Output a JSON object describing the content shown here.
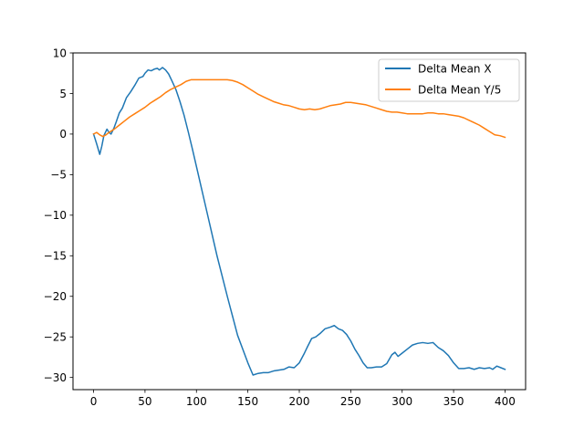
{
  "chart_data": {
    "type": "line",
    "title": "",
    "xlabel": "",
    "ylabel": "",
    "xlim": [
      -20,
      420
    ],
    "ylim": [
      -31.5,
      10
    ],
    "xticks": [
      0,
      50,
      100,
      150,
      200,
      250,
      300,
      350,
      400
    ],
    "yticks": [
      10,
      5,
      0,
      -5,
      -10,
      -15,
      -20,
      -25,
      -30
    ],
    "xtick_labels": [
      "0",
      "50",
      "100",
      "150",
      "200",
      "250",
      "300",
      "350",
      "400"
    ],
    "ytick_labels": [
      "10",
      "5",
      "0",
      "−5",
      "−10",
      "−15",
      "−20",
      "−25",
      "−30"
    ],
    "grid": false,
    "legend_position": "top-right",
    "series": [
      {
        "name": "Delta Mean X",
        "color": "#1f77b4",
        "points": [
          [
            0,
            0
          ],
          [
            3,
            -1.2
          ],
          [
            6,
            -2.5
          ],
          [
            8,
            -1.5
          ],
          [
            10,
            -0.2
          ],
          [
            13,
            0.6
          ],
          [
            15,
            0.2
          ],
          [
            17,
            0
          ],
          [
            20,
            0.8
          ],
          [
            22,
            1.5
          ],
          [
            25,
            2.6
          ],
          [
            28,
            3.2
          ],
          [
            32,
            4.5
          ],
          [
            36,
            5.2
          ],
          [
            40,
            6
          ],
          [
            44,
            6.9
          ],
          [
            48,
            7.1
          ],
          [
            50,
            7.5
          ],
          [
            53,
            7.9
          ],
          [
            56,
            7.8
          ],
          [
            59,
            8.0
          ],
          [
            62,
            8.1
          ],
          [
            64,
            7.9
          ],
          [
            67,
            8.2
          ],
          [
            70,
            7.9
          ],
          [
            73,
            7.4
          ],
          [
            76,
            6.6
          ],
          [
            80,
            5.5
          ],
          [
            84,
            4.0
          ],
          [
            88,
            2.3
          ],
          [
            92,
            0.3
          ],
          [
            96,
            -1.8
          ],
          [
            100,
            -4.0
          ],
          [
            110,
            -9.5
          ],
          [
            120,
            -15.0
          ],
          [
            130,
            -20.0
          ],
          [
            140,
            -24.8
          ],
          [
            150,
            -28.2
          ],
          [
            155,
            -29.7
          ],
          [
            160,
            -29.5
          ],
          [
            165,
            -29.4
          ],
          [
            170,
            -29.4
          ],
          [
            175,
            -29.2
          ],
          [
            180,
            -29.1
          ],
          [
            185,
            -29.0
          ],
          [
            190,
            -28.7
          ],
          [
            195,
            -28.8
          ],
          [
            200,
            -28.2
          ],
          [
            205,
            -27.0
          ],
          [
            208,
            -26.2
          ],
          [
            212,
            -25.2
          ],
          [
            216,
            -25.0
          ],
          [
            220,
            -24.6
          ],
          [
            225,
            -24.0
          ],
          [
            230,
            -23.8
          ],
          [
            234,
            -23.6
          ],
          [
            238,
            -24.0
          ],
          [
            242,
            -24.2
          ],
          [
            246,
            -24.7
          ],
          [
            250,
            -25.5
          ],
          [
            254,
            -26.5
          ],
          [
            258,
            -27.3
          ],
          [
            262,
            -28.2
          ],
          [
            266,
            -28.8
          ],
          [
            270,
            -28.8
          ],
          [
            275,
            -28.7
          ],
          [
            280,
            -28.7
          ],
          [
            285,
            -28.3
          ],
          [
            290,
            -27.2
          ],
          [
            293,
            -26.9
          ],
          [
            296,
            -27.4
          ],
          [
            300,
            -27.0
          ],
          [
            305,
            -26.5
          ],
          [
            310,
            -26.0
          ],
          [
            315,
            -25.8
          ],
          [
            320,
            -25.7
          ],
          [
            325,
            -25.8
          ],
          [
            330,
            -25.7
          ],
          [
            335,
            -26.3
          ],
          [
            340,
            -26.7
          ],
          [
            345,
            -27.3
          ],
          [
            350,
            -28.2
          ],
          [
            355,
            -28.9
          ],
          [
            360,
            -28.9
          ],
          [
            365,
            -28.8
          ],
          [
            370,
            -29.0
          ],
          [
            375,
            -28.8
          ],
          [
            380,
            -28.9
          ],
          [
            385,
            -28.8
          ],
          [
            388,
            -29.0
          ],
          [
            392,
            -28.6
          ],
          [
            396,
            -28.8
          ],
          [
            400,
            -29.0
          ]
        ]
      },
      {
        "name": "Delta Mean Y/5",
        "color": "#ff7f0e",
        "points": [
          [
            0,
            0
          ],
          [
            3,
            0.2
          ],
          [
            6,
            -0.1
          ],
          [
            9,
            -0.3
          ],
          [
            12,
            -0.1
          ],
          [
            15,
            0.2
          ],
          [
            20,
            0.6
          ],
          [
            25,
            1.1
          ],
          [
            30,
            1.6
          ],
          [
            35,
            2.1
          ],
          [
            40,
            2.5
          ],
          [
            45,
            2.9
          ],
          [
            50,
            3.3
          ],
          [
            55,
            3.8
          ],
          [
            60,
            4.2
          ],
          [
            65,
            4.6
          ],
          [
            70,
            5.1
          ],
          [
            75,
            5.5
          ],
          [
            80,
            5.8
          ],
          [
            85,
            6.1
          ],
          [
            90,
            6.5
          ],
          [
            95,
            6.7
          ],
          [
            100,
            6.7
          ],
          [
            110,
            6.7
          ],
          [
            120,
            6.7
          ],
          [
            130,
            6.7
          ],
          [
            135,
            6.6
          ],
          [
            140,
            6.4
          ],
          [
            145,
            6.1
          ],
          [
            150,
            5.7
          ],
          [
            155,
            5.3
          ],
          [
            160,
            4.9
          ],
          [
            165,
            4.6
          ],
          [
            170,
            4.3
          ],
          [
            175,
            4.0
          ],
          [
            180,
            3.8
          ],
          [
            185,
            3.6
          ],
          [
            190,
            3.5
          ],
          [
            195,
            3.3
          ],
          [
            200,
            3.1
          ],
          [
            205,
            3.0
          ],
          [
            210,
            3.1
          ],
          [
            215,
            3.0
          ],
          [
            220,
            3.1
          ],
          [
            225,
            3.3
          ],
          [
            230,
            3.5
          ],
          [
            235,
            3.6
          ],
          [
            240,
            3.7
          ],
          [
            245,
            3.9
          ],
          [
            250,
            3.9
          ],
          [
            255,
            3.8
          ],
          [
            260,
            3.7
          ],
          [
            265,
            3.6
          ],
          [
            270,
            3.4
          ],
          [
            275,
            3.2
          ],
          [
            280,
            3.0
          ],
          [
            285,
            2.8
          ],
          [
            290,
            2.7
          ],
          [
            295,
            2.7
          ],
          [
            300,
            2.6
          ],
          [
            305,
            2.5
          ],
          [
            310,
            2.5
          ],
          [
            315,
            2.5
          ],
          [
            320,
            2.5
          ],
          [
            325,
            2.6
          ],
          [
            330,
            2.6
          ],
          [
            335,
            2.5
          ],
          [
            340,
            2.5
          ],
          [
            345,
            2.4
          ],
          [
            350,
            2.3
          ],
          [
            355,
            2.2
          ],
          [
            360,
            2.0
          ],
          [
            365,
            1.7
          ],
          [
            370,
            1.4
          ],
          [
            375,
            1.1
          ],
          [
            380,
            0.7
          ],
          [
            385,
            0.3
          ],
          [
            390,
            -0.1
          ],
          [
            395,
            -0.2
          ],
          [
            400,
            -0.4
          ]
        ]
      }
    ]
  }
}
